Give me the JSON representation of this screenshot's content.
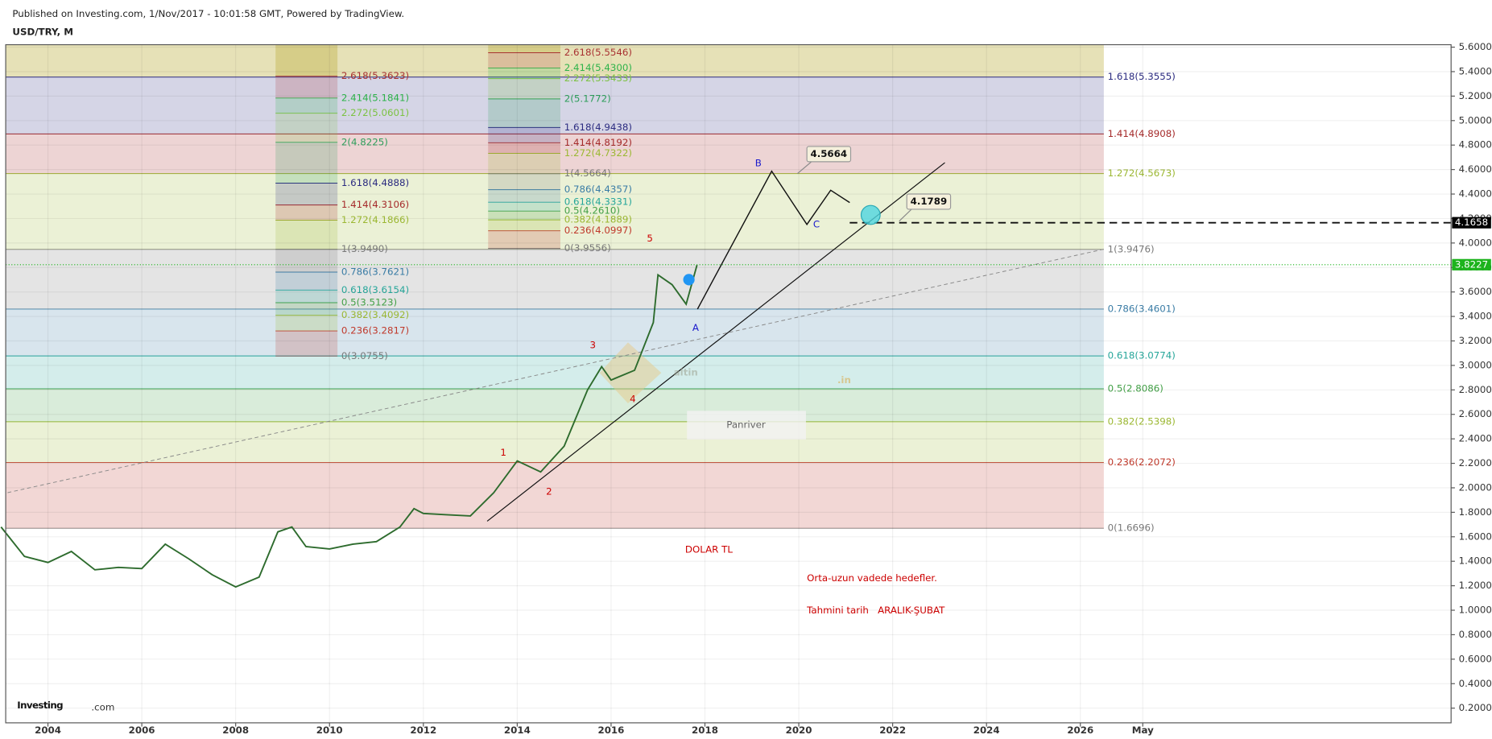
{
  "chart_data": {
    "type": "line",
    "header": "Published on Investing.com, 1/Nov/2017 - 10:01:58 GMT, Powered by TradingView.",
    "title": "USD/TRY, M",
    "x": [
      2003.0,
      2003.5,
      2004.0,
      2004.5,
      2005.0,
      2005.5,
      2006.0,
      2006.5,
      2007.0,
      2007.5,
      2008.0,
      2008.5,
      2008.9,
      2009.2,
      2009.5,
      2010.0,
      2010.5,
      2011.0,
      2011.5,
      2011.8,
      2012.0,
      2012.5,
      2013.0,
      2013.5,
      2014.0,
      2014.5,
      2015.0,
      2015.5,
      2015.8,
      2016.0,
      2016.5,
      2016.9,
      2017.0,
      2017.3,
      2017.6,
      2017.83
    ],
    "values": [
      1.68,
      1.44,
      1.39,
      1.48,
      1.33,
      1.35,
      1.34,
      1.54,
      1.42,
      1.29,
      1.19,
      1.27,
      1.64,
      1.68,
      1.52,
      1.5,
      1.54,
      1.56,
      1.68,
      1.83,
      1.79,
      1.78,
      1.77,
      1.96,
      2.22,
      2.13,
      2.34,
      2.8,
      2.99,
      2.88,
      2.96,
      3.35,
      3.74,
      3.66,
      3.5,
      3.82
    ],
    "color": "#2d6b2d",
    "xlim": [
      2003.1,
      2033.9
    ],
    "xticks": [
      2004,
      2006,
      2008,
      2010,
      2012,
      2014,
      2016,
      2018,
      2020,
      2022,
      2024,
      2026,
      {
        "value": 2027.33,
        "label": "May"
      }
    ],
    "ylim": [
      0.08,
      5.62
    ],
    "yticks": [
      {
        "value": 0.2,
        "label": "0.2000"
      },
      {
        "value": 0.4,
        "label": "0.4000"
      },
      {
        "value": 0.6,
        "label": "0.6000"
      },
      {
        "value": 0.8,
        "label": "0.8000"
      },
      {
        "value": 1.0,
        "label": "1.0000"
      },
      {
        "value": 1.2,
        "label": "1.2000"
      },
      {
        "value": 1.4,
        "label": "1.4000"
      },
      {
        "value": 1.6,
        "label": "1.6000"
      },
      {
        "value": 1.8,
        "label": "1.8000"
      },
      {
        "value": 2.0,
        "label": "2.0000"
      },
      {
        "value": 2.2,
        "label": "2.2000"
      },
      {
        "value": 2.4,
        "label": "2.4000"
      },
      {
        "value": 2.6,
        "label": "2.6000"
      },
      {
        "value": 2.8,
        "label": "2.8000"
      },
      {
        "value": 3.0,
        "label": "3.0000"
      },
      {
        "value": 3.2,
        "label": "3.2000"
      },
      {
        "value": 3.4,
        "label": "3.4000"
      },
      {
        "value": 3.6,
        "label": "3.6000"
      },
      {
        "value": 3.8,
        "label": "3.8000"
      },
      {
        "value": 4.0,
        "label": "4.0000"
      },
      {
        "value": 4.2,
        "label": "4.2000"
      },
      {
        "value": 4.4,
        "label": "4.4000"
      },
      {
        "value": 4.6,
        "label": "4.6000"
      },
      {
        "value": 4.8,
        "label": "4.8000"
      },
      {
        "value": 5.0,
        "label": "5.0000"
      },
      {
        "value": 5.2,
        "label": "5.2000"
      },
      {
        "value": 5.4,
        "label": "5.4000"
      },
      {
        "value": 5.6,
        "label": "5.6000"
      }
    ],
    "grid": true,
    "last_price": 3.8227,
    "target_price": 4.1658,
    "fib_retracements": [
      {
        "x": [
          2003.1,
          2026.5
        ],
        "levels": [
          {
            "price": 1.6696,
            "label": "0(1.6696)",
            "color": "#787878"
          },
          {
            "price": 2.2072,
            "label": "0.236(2.2072)",
            "color": "#c0392b"
          },
          {
            "price": 2.5398,
            "label": "0.382(2.5398)",
            "color": "#9cb833"
          },
          {
            "price": 2.8086,
            "label": "0.5(2.8086)",
            "color": "#43a047"
          },
          {
            "price": 3.0774,
            "label": "0.618(3.0774)",
            "color": "#26a69a"
          },
          {
            "price": 3.4601,
            "label": "0.786(3.4601)",
            "color": "#3a7ca5"
          },
          {
            "price": 3.9476,
            "label": "1(3.9476)",
            "color": "#787878"
          },
          {
            "price": 4.5673,
            "label": "1.272(4.5673)",
            "color": "#9cb833"
          },
          {
            "price": 4.8908,
            "label": "1.414(4.8908)",
            "color": "#a52a2a"
          },
          {
            "price": 5.3555,
            "label": "1.618(5.3555)",
            "color": "#2b2b80"
          }
        ]
      },
      {
        "x": [
          2008.85,
          2010.17
        ],
        "levels": [
          {
            "price": 3.0755,
            "label": "0(3.0755)",
            "color": "#787878"
          },
          {
            "price": 3.2817,
            "label": "0.236(3.2817)",
            "color": "#c0392b"
          },
          {
            "price": 3.4092,
            "label": "0.382(3.4092)",
            "color": "#9cb833"
          },
          {
            "price": 3.5123,
            "label": "0.5(3.5123)",
            "color": "#43a047"
          },
          {
            "price": 3.6154,
            "label": "0.618(3.6154)",
            "color": "#26a69a"
          },
          {
            "price": 3.7621,
            "label": "0.786(3.7621)",
            "color": "#3a7ca5"
          },
          {
            "price": 3.949,
            "label": "1(3.9490)",
            "color": "#787878"
          },
          {
            "price": 4.1866,
            "label": "1.272(4.1866)",
            "color": "#9cb833"
          },
          {
            "price": 4.3106,
            "label": "1.414(4.3106)",
            "color": "#a52a2a"
          },
          {
            "price": 4.4888,
            "label": "1.618(4.4888)",
            "color": "#2b2b80"
          },
          {
            "price": 4.8225,
            "label": "2(4.8225)",
            "color": "#2e9e5b"
          },
          {
            "price": 5.0601,
            "label": "2.272(5.0601)",
            "color": "#7cc242"
          },
          {
            "price": 5.1841,
            "label": "2.414(5.1841)",
            "color": "#2db34a"
          },
          {
            "price": 5.3623,
            "label": "2.618(5.3623)",
            "color": "#a83232"
          }
        ]
      },
      {
        "x": [
          2013.38,
          2014.92
        ],
        "levels": [
          {
            "price": 3.9556,
            "label": "0(3.9556)",
            "color": "#787878"
          },
          {
            "price": 4.0997,
            "label": "0.236(4.0997)",
            "color": "#c0392b"
          },
          {
            "price": 4.1889,
            "label": "0.382(4.1889)",
            "color": "#9cb833"
          },
          {
            "price": 4.261,
            "label": "0.5(4.2610)",
            "color": "#43a047"
          },
          {
            "price": 4.3331,
            "label": "0.618(4.3331)",
            "color": "#26a69a"
          },
          {
            "price": 4.4357,
            "label": "0.786(4.4357)",
            "color": "#3a7ca5"
          },
          {
            "price": 4.5664,
            "label": "1(4.5664)",
            "color": "#787878"
          },
          {
            "price": 4.7322,
            "label": "1.272(4.7322)",
            "color": "#9cb833"
          },
          {
            "price": 4.8192,
            "label": "1.414(4.8192)",
            "color": "#a52a2a"
          },
          {
            "price": 4.9438,
            "label": "1.618(4.9438)",
            "color": "#2b2b80"
          },
          {
            "price": 5.1772,
            "label": "2(5.1772)",
            "color": "#2e9e5b"
          },
          {
            "price": 5.3433,
            "label": "2.272(5.3433)",
            "color": "#7cc242"
          },
          {
            "price": 5.43,
            "label": "2.414(5.4300)",
            "color": "#2db34a"
          },
          {
            "price": 5.5546,
            "label": "2.618(5.5546)",
            "color": "#a83232"
          }
        ]
      }
    ],
    "waves": [
      "1",
      "2",
      "3",
      "4",
      "5",
      "A",
      "B",
      "C"
    ],
    "callouts": [
      4.5664,
      4.1789
    ],
    "texts": [
      "DOLAR TL",
      "Orta-uzun vadede hedefler.",
      "Tahmini tarih   ARALIK-ŞUBAT"
    ],
    "watermark": [
      "altin",
      ".in",
      "Panriver"
    ],
    "logo": [
      "Investing",
      ".com"
    ]
  }
}
